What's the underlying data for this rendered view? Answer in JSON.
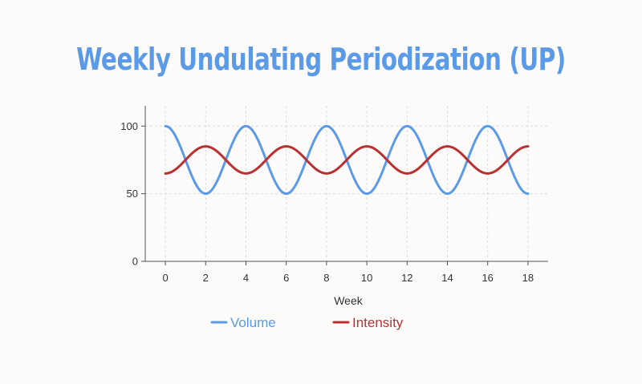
{
  "chart_data": {
    "type": "line",
    "title": "Weekly Undulating Periodization (UP)",
    "xlabel": "Week",
    "ylabel": "",
    "xlim": [
      -1,
      19
    ],
    "ylim": [
      0,
      115
    ],
    "x_ticks": [
      0,
      2,
      4,
      6,
      8,
      10,
      12,
      14,
      16,
      18
    ],
    "y_ticks": [
      0,
      50,
      100
    ],
    "grid": true,
    "legend_position": "bottom",
    "x": [
      0,
      2,
      4,
      6,
      8,
      10,
      12,
      14,
      16,
      18
    ],
    "series": [
      {
        "name": "Volume",
        "color": "#5b9ae6",
        "values": [
          100,
          50,
          100,
          50,
          100,
          50,
          100,
          50,
          100,
          50
        ]
      },
      {
        "name": "Intensity",
        "color": "#b93030",
        "values": [
          65,
          85,
          65,
          85,
          65,
          85,
          65,
          85,
          65,
          85
        ]
      }
    ]
  }
}
